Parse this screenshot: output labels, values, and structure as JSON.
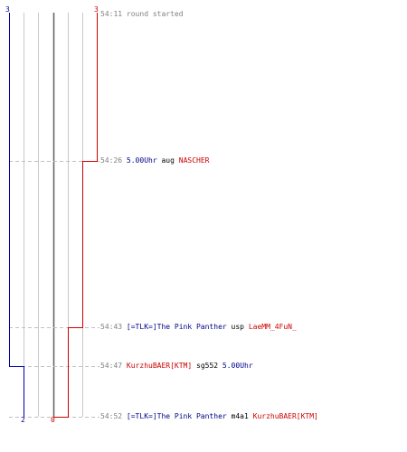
{
  "teams": {
    "blue": {
      "color": "#0000aa",
      "start_count": "3",
      "end_count": "2"
    },
    "red": {
      "color": "#cc0000",
      "start_count": "3",
      "end_count": "0"
    }
  },
  "events": [
    {
      "time": "54:11",
      "text": "round started"
    },
    {
      "time": "54:26",
      "killer": "5.00Uhr",
      "weapon": "aug",
      "victim": "NASCHER"
    },
    {
      "time": "54:43",
      "killer": "[=TLK=]The Pink Panther",
      "weapon": "usp",
      "victim": "LaeMM_4FuN_"
    },
    {
      "time": "54:47",
      "killer": "KurzhuBAER[KTM]",
      "weapon": "sg552",
      "victim": "5.00Uhr"
    },
    {
      "time": "54:52",
      "killer": "[=TLK=]The Pink Panther",
      "weapon": "m4a1",
      "victim": "KurzhuBAER[KTM]"
    }
  ]
}
